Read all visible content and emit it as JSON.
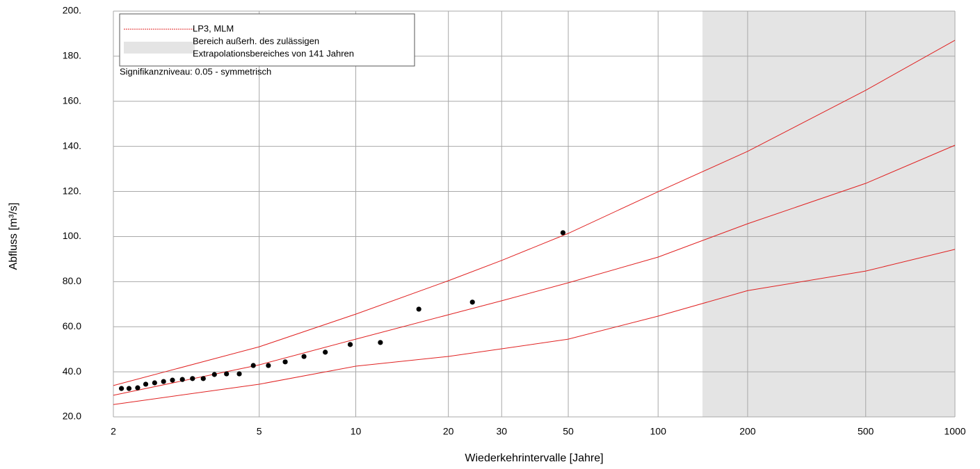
{
  "chart_data": {
    "type": "line",
    "xscale": "gumbel",
    "xlabel": "Wiederkehrintervalle [Jahre]",
    "ylabel": "Abfluss [m³/s]",
    "xlim": [
      2,
      1000
    ],
    "xticks": [
      2,
      5,
      10,
      20,
      30,
      50,
      100,
      200,
      500,
      1000
    ],
    "ylim": [
      20,
      200
    ],
    "yticks": [
      {
        "value": 20,
        "label": "20.0"
      },
      {
        "value": 40,
        "label": "40.0"
      },
      {
        "value": 60,
        "label": "60.0"
      },
      {
        "value": 80,
        "label": "80.0"
      },
      {
        "value": 100,
        "label": "100."
      },
      {
        "value": 120,
        "label": "120."
      },
      {
        "value": 140,
        "label": "140."
      },
      {
        "value": 160,
        "label": "160."
      },
      {
        "value": 180,
        "label": "180."
      },
      {
        "value": 200,
        "label": "200."
      }
    ],
    "grid": true,
    "x": [
      2,
      5,
      10,
      20,
      30,
      50,
      100,
      200,
      500,
      1000
    ],
    "series": [
      {
        "name": "LP3, MLM",
        "color": "#e02020",
        "values": [
          29.6,
          43.1,
          54.5,
          65.3,
          71.5,
          79.5,
          90.9,
          105.7,
          123.6,
          140.5
        ]
      }
    ],
    "confidence_band": {
      "color": "#e02020",
      "upper": [
        33.9,
        51.1,
        65.6,
        80.4,
        89.4,
        101.4,
        119.9,
        137.8,
        164.9,
        187.1
      ],
      "lower": [
        25.5,
        34.5,
        42.5,
        46.8,
        50.2,
        54.5,
        64.7,
        76.0,
        84.7,
        94.3
      ]
    },
    "observations": {
      "color": "#000000",
      "x": [
        2.09,
        2.18,
        2.29,
        2.4,
        2.53,
        2.67,
        2.82,
        3,
        3.2,
        3.43,
        3.69,
        4,
        4.36,
        4.8,
        5.33,
        6,
        6.86,
        8,
        9.6,
        12,
        16,
        24,
        48
      ],
      "values": [
        32.6,
        32.6,
        32.9,
        34.5,
        35.1,
        35.7,
        36.3,
        36.6,
        37.0,
        37.0,
        38.8,
        39.1,
        39.1,
        42.8,
        42.8,
        44.4,
        46.8,
        48.7,
        52.1,
        53.0,
        67.8,
        70.9,
        101.7
      ]
    },
    "extrapolation_limit": 141,
    "extrapolation_color": "#e4e4e4",
    "extrapolation_legend": [
      "Bereich außerh. des zulässigen",
      "Extrapolationsbereiches von 141 Jahren"
    ],
    "annotation": "Signifikanzniveau:  0.05 - symmetrisch"
  }
}
